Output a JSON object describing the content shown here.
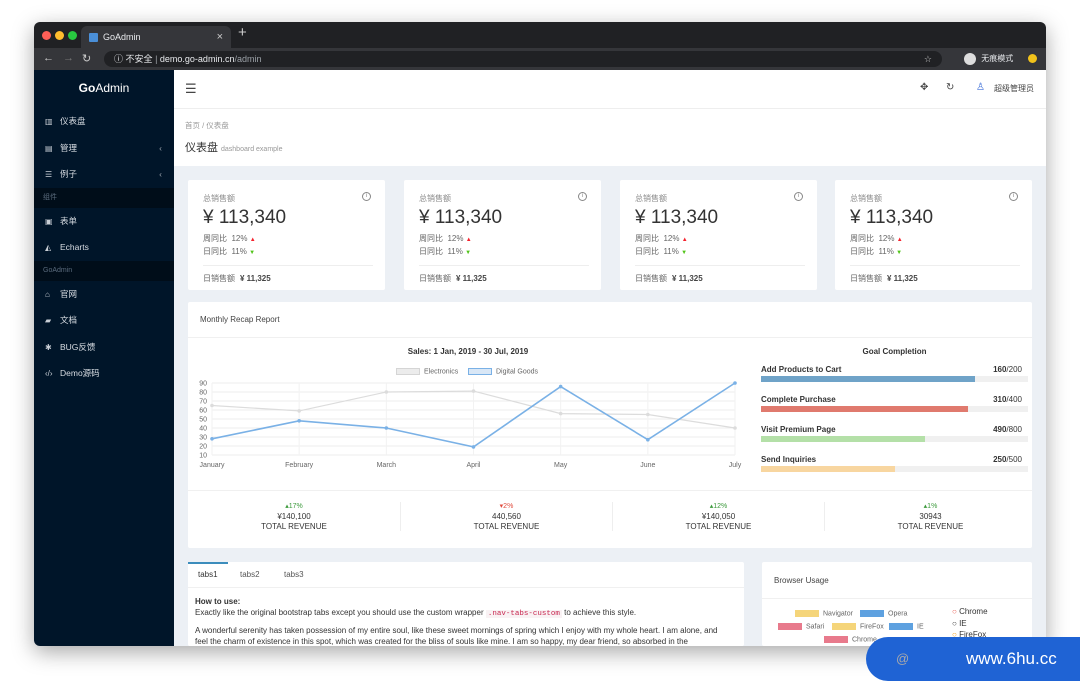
{
  "browser": {
    "tab_title": "GoAdmin",
    "tab_close": "×",
    "new_tab": "+",
    "insecure_label": "不安全",
    "url_domain": "demo.go-admin.cn",
    "url_path": "/admin",
    "incognito_label": "无痕模式"
  },
  "sidebar": {
    "logo_go": "Go",
    "logo_admin": "Admin",
    "items": [
      {
        "label": "仪表盘",
        "icon": "bar-chart-icon"
      },
      {
        "label": "管理",
        "icon": "table-icon",
        "arrow": "‹"
      },
      {
        "label": "例子",
        "icon": "sliders-icon",
        "arrow": "‹"
      }
    ],
    "section1": "组件",
    "items2": [
      {
        "label": "表单",
        "icon": "form-icon"
      },
      {
        "label": "Echarts",
        "icon": "area-chart-icon"
      }
    ],
    "section2": "GoAdmin",
    "items3": [
      {
        "label": "官网",
        "icon": "home-icon"
      },
      {
        "label": "文档",
        "icon": "book-icon"
      },
      {
        "label": "BUG反馈",
        "icon": "bug-icon"
      },
      {
        "label": "Demo源码",
        "icon": "code-icon"
      }
    ]
  },
  "header": {
    "user": "超级管理员"
  },
  "breadcrumb": {
    "home": "首页",
    "sep": "/",
    "current": "仪表盘"
  },
  "page": {
    "title": "仪表盘",
    "subtitle": "dashboard example"
  },
  "stats": [
    {
      "title": "总销售额",
      "value": "¥ 113,340",
      "wow_label": "周同比",
      "wow": "12%",
      "dod_label": "日同比",
      "dod": "11%",
      "daily_label": "日销售额",
      "daily": "¥ 11,325"
    },
    {
      "title": "总销售额",
      "value": "¥ 113,340",
      "wow_label": "周同比",
      "wow": "12%",
      "dod_label": "日同比",
      "dod": "11%",
      "daily_label": "日销售额",
      "daily": "¥ 11,325"
    },
    {
      "title": "总销售额",
      "value": "¥ 113,340",
      "wow_label": "周同比",
      "wow": "12%",
      "dod_label": "日同比",
      "dod": "11%",
      "daily_label": "日销售额",
      "daily": "¥ 11,325"
    },
    {
      "title": "总销售额",
      "value": "¥ 113,340",
      "wow_label": "周同比",
      "wow": "12%",
      "dod_label": "日同比",
      "dod": "11%",
      "daily_label": "日销售额",
      "daily": "¥ 11,325"
    }
  ],
  "recap": {
    "title": "Monthly Recap Report",
    "goal_title": "Goal Completion",
    "goals": [
      {
        "name": "Add Products to Cart",
        "value": "160",
        "total": "/200",
        "fraction": 0.8,
        "color": "#6fa3c8"
      },
      {
        "name": "Complete Purchase",
        "value": "310",
        "total": "/400",
        "fraction": 0.775,
        "color": "#e07a6e"
      },
      {
        "name": "Visit Premium Page",
        "value": "490",
        "total": "/800",
        "fraction": 0.6125,
        "color": "#b4e0a8"
      },
      {
        "name": "Send Inquiries",
        "value": "250",
        "total": "/500",
        "fraction": 0.5,
        "color": "#f8d6a0"
      }
    ],
    "kpis": [
      {
        "pct": "▴17%",
        "dir": "up",
        "num": "¥140,100",
        "label": "TOTAL REVENUE"
      },
      {
        "pct": "▾2%",
        "dir": "down",
        "num": "440,560",
        "label": "TOTAL REVENUE"
      },
      {
        "pct": "▴12%",
        "dir": "up",
        "num": "¥140,050",
        "label": "TOTAL REVENUE"
      },
      {
        "pct": "▴1%",
        "dir": "up",
        "num": "30943",
        "label": "TOTAL REVENUE"
      }
    ]
  },
  "chart_data": {
    "type": "line",
    "title": "Sales: 1 Jan, 2019 - 30 Jul, 2019",
    "categories": [
      "January",
      "February",
      "March",
      "April",
      "May",
      "June",
      "July"
    ],
    "ylim": [
      10,
      90
    ],
    "yticks": [
      10,
      20,
      30,
      40,
      50,
      60,
      70,
      80,
      90
    ],
    "legend_position": "top",
    "grid": true,
    "series": [
      {
        "name": "Electronics",
        "values": [
          65,
          59,
          80,
          81,
          56,
          55,
          40
        ],
        "color": "#dcdcdc"
      },
      {
        "name": "Digital Goods",
        "values": [
          28,
          48,
          40,
          19,
          86,
          27,
          90
        ],
        "color": "#7ab1e6"
      }
    ]
  },
  "tabs": {
    "items": [
      "tabs1",
      "tabs2",
      "tabs3"
    ],
    "howto_title": "How to use:",
    "howto_pre": "Exactly like the original bootstrap tabs except you should use the custom wrapper",
    "howto_code": ".nav-tabs-custom",
    "howto_post": "to achieve this style.",
    "para1": "A wonderful serenity has taken possession of my entire soul, like these sweet mornings of spring which I enjoy with my whole heart. I am alone, and",
    "para2": "feel the charm of existence in this spot, which was created for the bliss of souls like mine. I am so happy, my dear friend, so absorbed in the"
  },
  "browser_usage": {
    "title": "Browser Usage",
    "legend": [
      {
        "name": "Navigator",
        "color": "#f5d57a"
      },
      {
        "name": "Opera",
        "color": "#5ea1e0"
      },
      {
        "name": "Safari",
        "color": "#e87a8c"
      },
      {
        "name": "FireFox",
        "color": "#f5d57a"
      },
      {
        "name": "IE",
        "color": "#5ea1e0"
      },
      {
        "name": "Chrome",
        "color": "#e87a8c"
      }
    ],
    "list": [
      {
        "name": "Chrome",
        "color": "#e85a4f"
      },
      {
        "name": "IE",
        "color": "#333333"
      },
      {
        "name": "FireFox",
        "color": "#f39c12"
      }
    ]
  },
  "watermark": {
    "text": "www.6hu.cc",
    "at": "@"
  }
}
